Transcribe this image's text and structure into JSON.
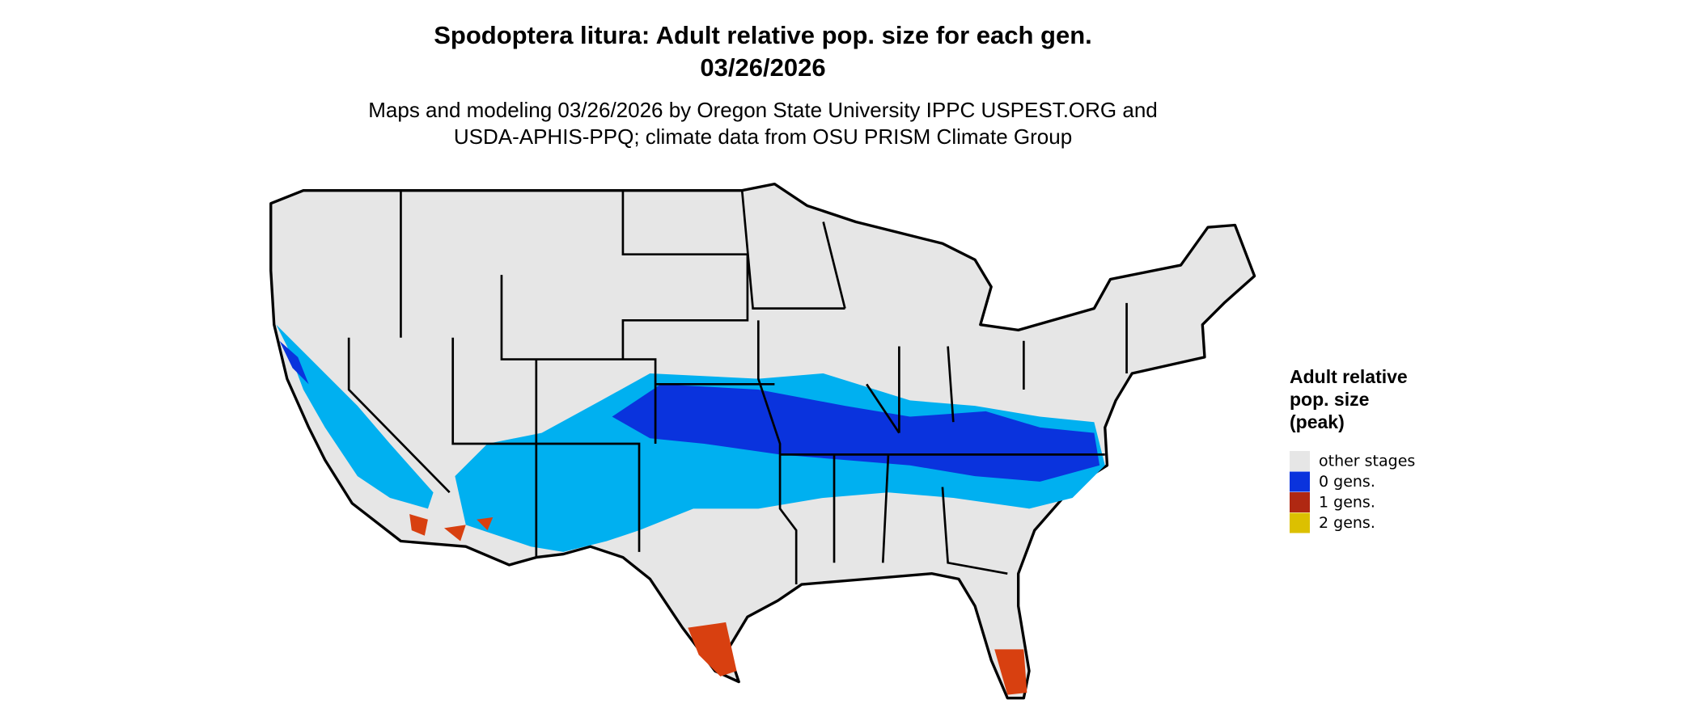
{
  "header": {
    "title": [
      "Spodoptera litura: Adult relative pop. size for each gen.",
      "03/26/2026"
    ],
    "subtitle": [
      "Maps and modeling 03/26/2026 by Oregon State University IPPC USPEST.ORG and",
      "USDA-APHIS-PPQ; climate data from OSU PRISM Climate Group"
    ]
  },
  "legend": {
    "title": [
      "Adult relative",
      "pop. size",
      "(peak)"
    ],
    "items": [
      {
        "label": "other stages",
        "color": "#e6e6e6"
      },
      {
        "label": "0 gens.",
        "color": "#0a33dd"
      },
      {
        "label": "1 gens.",
        "color": "#b02812"
      },
      {
        "label": "2 gens.",
        "color": "#dcc000"
      }
    ]
  }
}
